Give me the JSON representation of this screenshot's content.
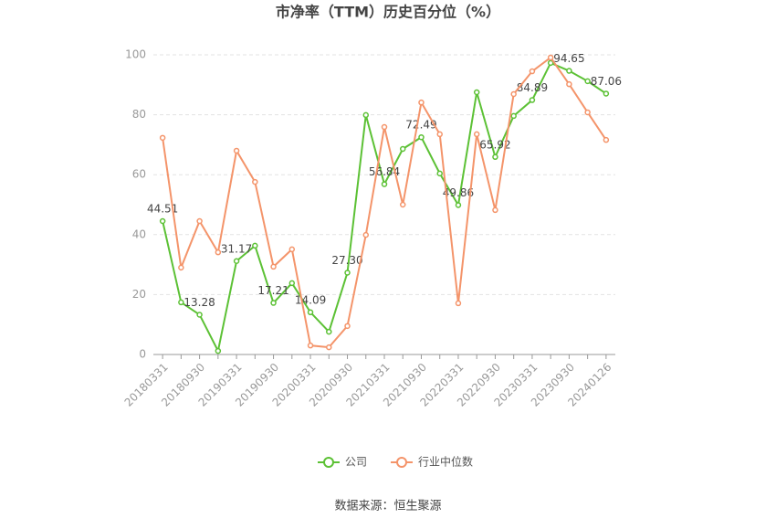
{
  "chart_data": {
    "type": "line",
    "title": "市净率（TTM）历史百分位（%）",
    "source": "数据来源：恒生聚源",
    "categories": [
      "20180331",
      null,
      "20180930",
      null,
      "20190331",
      null,
      "20190930",
      null,
      "20200331",
      null,
      "20200930",
      null,
      "20210331",
      null,
      "20210930",
      null,
      "20220331",
      null,
      "20220930",
      null,
      "20230331",
      null,
      "20230930",
      null,
      "20240126"
    ],
    "ylim": [
      0,
      100
    ],
    "yticks": [
      0,
      20,
      40,
      60,
      80,
      100
    ],
    "grid": true,
    "series": [
      {
        "name": "公司",
        "color": "#5cc135",
        "values": [
          44.51,
          17.4,
          13.28,
          1.2,
          31.17,
          36.3,
          17.21,
          23.8,
          14.09,
          7.6,
          27.3,
          79.9,
          56.84,
          68.6,
          72.49,
          60.4,
          49.86,
          87.5,
          65.92,
          79.6,
          84.89,
          97.3,
          94.65,
          91.2,
          87.06
        ],
        "value_labels": [
          "44.51",
          null,
          "13.28",
          null,
          "31.17",
          null,
          "17.21",
          null,
          "14.09",
          null,
          "27.30",
          null,
          "56.84",
          null,
          "72.49",
          null,
          "49.86",
          null,
          "65.92",
          null,
          "84.89",
          null,
          "94.65",
          null,
          "87.06"
        ]
      },
      {
        "name": "行业中位数",
        "color": "#f4946a",
        "values": [
          72.3,
          29.0,
          44.5,
          34.1,
          68.0,
          57.6,
          29.3,
          35.1,
          3.0,
          2.4,
          9.5,
          39.9,
          75.9,
          50.0,
          84.1,
          73.5,
          17.1,
          73.5,
          48.2,
          86.9,
          94.5,
          99.1,
          90.2,
          80.8,
          71.6
        ]
      }
    ]
  }
}
